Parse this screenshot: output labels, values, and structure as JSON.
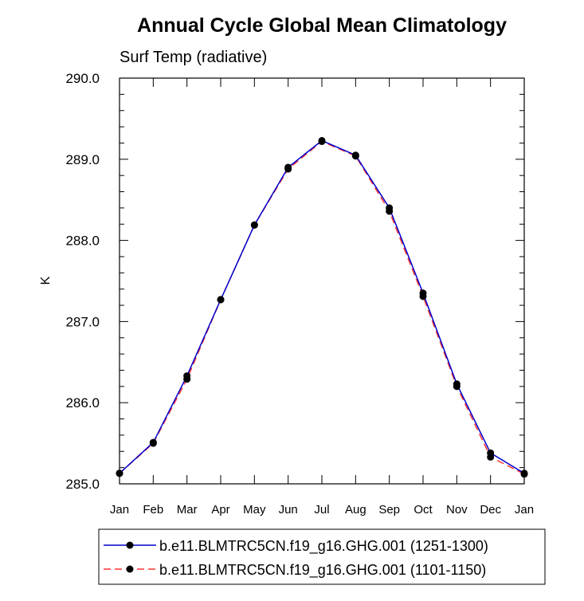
{
  "chart_data": {
    "type": "line",
    "title": "Annual Cycle Global Mean Climatology",
    "subtitle": "Surf Temp (radiative)",
    "xlabel": "",
    "ylabel": "K",
    "categories": [
      "Jan",
      "Feb",
      "Mar",
      "Apr",
      "May",
      "Jun",
      "Jul",
      "Aug",
      "Sep",
      "Oct",
      "Nov",
      "Dec",
      "Jan"
    ],
    "ylim": [
      285.0,
      290.0
    ],
    "yticks": [
      "285.0",
      "286.0",
      "287.0",
      "288.0",
      "289.0",
      "290.0"
    ],
    "grid": false,
    "legend_position": "bottom",
    "series": [
      {
        "name": "b.e11.BLMTRC5CN.f19_g16.GHG.001 (1251-1300)",
        "color": "#0000cc",
        "line_style": "solid",
        "values": [
          285.13,
          285.51,
          286.33,
          287.27,
          288.19,
          288.9,
          289.23,
          289.05,
          288.4,
          287.35,
          286.23,
          285.38,
          285.13
        ]
      },
      {
        "name": "b.e11.BLMTRC5CN.f19_g16.GHG.001 (1101-1150)",
        "color": "#ff3333",
        "line_style": "dashed",
        "values": [
          285.13,
          285.5,
          286.29,
          287.27,
          288.19,
          288.88,
          289.22,
          289.04,
          288.36,
          287.31,
          286.2,
          285.33,
          285.12
        ]
      }
    ]
  }
}
